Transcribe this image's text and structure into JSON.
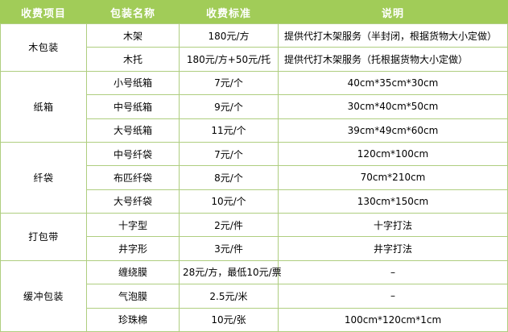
{
  "table": {
    "headers": [
      "收费项目",
      "包装名称",
      "收费标准",
      "说明"
    ],
    "groups": [
      {
        "category": "木包装",
        "rows": [
          {
            "name": "木架",
            "price": "180元/方",
            "note": "提供代打木架服务（半封闭，根据货物大小定做）",
            "note_align": "left"
          },
          {
            "name": "木托",
            "price": "180元/方+50元/托",
            "note": "提供代打木架服务（托根据货物大小定做）",
            "note_align": "left"
          }
        ]
      },
      {
        "category": "纸箱",
        "rows": [
          {
            "name": "小号纸箱",
            "price": "7元/个",
            "note": "40cm*35cm*30cm"
          },
          {
            "name": "中号纸箱",
            "price": "9元/个",
            "note": "30cm*40cm*50cm"
          },
          {
            "name": "大号纸箱",
            "price": "11元/个",
            "note": "39cm*49cm*60cm"
          }
        ]
      },
      {
        "category": "纤袋",
        "rows": [
          {
            "name": "中号纤袋",
            "price": "7元/个",
            "note": "120cm*100cm"
          },
          {
            "name": "布匹纤袋",
            "price": "8元/个",
            "note": "70cm*210cm"
          },
          {
            "name": "大号纤袋",
            "price": "10元/个",
            "note": "130cm*150cm"
          }
        ]
      },
      {
        "category": "打包带",
        "rows": [
          {
            "name": "十字型",
            "price": "2元/件",
            "note": "十字打法"
          },
          {
            "name": "井字形",
            "price": "3元/件",
            "note": "井字打法"
          }
        ]
      },
      {
        "category": "缓冲包装",
        "rows": [
          {
            "name": "缠绕膜",
            "price": "28元/方，最低10元/票",
            "note": "–"
          },
          {
            "name": "气泡膜",
            "price": "2.5元/米",
            "note": "–"
          },
          {
            "name": "珍珠棉",
            "price": "10元/张",
            "note": "100cm*120cm*1cm"
          }
        ]
      }
    ],
    "colors": {
      "header_bg": "#A1CC58",
      "header_text": "#FFFFFF",
      "border": "#AFCE80",
      "body_text": "#000000"
    }
  }
}
